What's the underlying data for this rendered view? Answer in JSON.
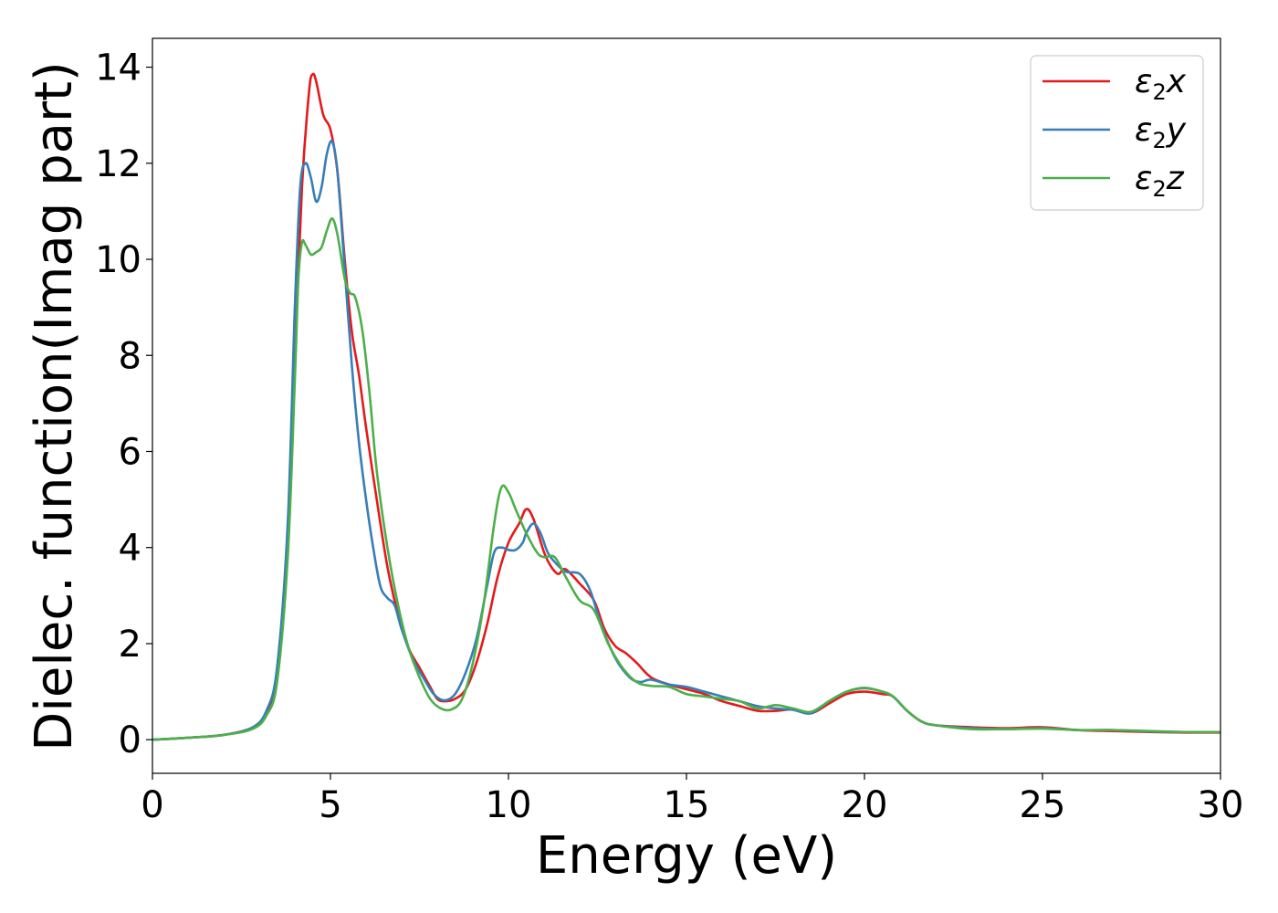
{
  "chart_data": {
    "type": "line",
    "xlabel": "Energy (eV)",
    "ylabel": "Dielec. function(Imag part)",
    "xlim": [
      0,
      30
    ],
    "ylim": [
      -0.7,
      14.6
    ],
    "x_ticks": [
      0,
      5,
      10,
      15,
      20,
      25,
      30
    ],
    "y_ticks": [
      0,
      2,
      4,
      6,
      8,
      10,
      12,
      14
    ],
    "x_tick_labels": [
      "0",
      "5",
      "10",
      "15",
      "20",
      "25",
      "30"
    ],
    "y_tick_labels": [
      "0",
      "2",
      "4",
      "6",
      "8",
      "10",
      "12",
      "14"
    ],
    "grid": false,
    "legend_position": "top-right",
    "series": [
      {
        "name": "ε2x",
        "label_base": "ε",
        "label_sub": "2",
        "label_tail": "x",
        "color": "#e41a1c",
        "points": [
          [
            0,
            0
          ],
          [
            1,
            0.04
          ],
          [
            2,
            0.1
          ],
          [
            2.8,
            0.25
          ],
          [
            3.2,
            0.55
          ],
          [
            3.5,
            1.3
          ],
          [
            3.8,
            4.0
          ],
          [
            4.0,
            8.0
          ],
          [
            4.2,
            11.5
          ],
          [
            4.4,
            13.5
          ],
          [
            4.5,
            13.85
          ],
          [
            4.6,
            13.7
          ],
          [
            4.8,
            13.0
          ],
          [
            5.0,
            12.7
          ],
          [
            5.2,
            11.8
          ],
          [
            5.4,
            10.0
          ],
          [
            5.6,
            8.5
          ],
          [
            5.8,
            7.6
          ],
          [
            6.0,
            6.5
          ],
          [
            6.3,
            5.0
          ],
          [
            6.6,
            3.6
          ],
          [
            6.9,
            2.6
          ],
          [
            7.2,
            1.9
          ],
          [
            7.5,
            1.5
          ],
          [
            7.8,
            1.1
          ],
          [
            8.0,
            0.85
          ],
          [
            8.2,
            0.8
          ],
          [
            8.5,
            0.85
          ],
          [
            8.8,
            1.05
          ],
          [
            9.1,
            1.6
          ],
          [
            9.4,
            2.4
          ],
          [
            9.7,
            3.4
          ],
          [
            10.0,
            4.1
          ],
          [
            10.3,
            4.5
          ],
          [
            10.5,
            4.8
          ],
          [
            10.7,
            4.6
          ],
          [
            11.0,
            3.9
          ],
          [
            11.2,
            3.6
          ],
          [
            11.4,
            3.45
          ],
          [
            11.6,
            3.55
          ],
          [
            12.0,
            3.25
          ],
          [
            12.4,
            2.9
          ],
          [
            12.7,
            2.3
          ],
          [
            13.0,
            1.95
          ],
          [
            13.3,
            1.8
          ],
          [
            13.6,
            1.6
          ],
          [
            14.0,
            1.3
          ],
          [
            14.5,
            1.15
          ],
          [
            15.0,
            1.05
          ],
          [
            15.5,
            0.95
          ],
          [
            16.0,
            0.8
          ],
          [
            16.5,
            0.7
          ],
          [
            17.0,
            0.6
          ],
          [
            17.5,
            0.6
          ],
          [
            18.0,
            0.63
          ],
          [
            18.5,
            0.55
          ],
          [
            19.0,
            0.75
          ],
          [
            19.5,
            0.95
          ],
          [
            20.0,
            1.0
          ],
          [
            20.5,
            0.95
          ],
          [
            20.8,
            0.9
          ],
          [
            21.2,
            0.6
          ],
          [
            21.6,
            0.38
          ],
          [
            22.0,
            0.3
          ],
          [
            23.0,
            0.26
          ],
          [
            24.0,
            0.24
          ],
          [
            25.0,
            0.26
          ],
          [
            26.0,
            0.2
          ],
          [
            27.0,
            0.18
          ],
          [
            28.0,
            0.16
          ],
          [
            29.0,
            0.15
          ],
          [
            30.0,
            0.15
          ]
        ]
      },
      {
        "name": "ε2y",
        "label_base": "ε",
        "label_sub": "2",
        "label_tail": "y",
        "color": "#377eb8",
        "points": [
          [
            0,
            0
          ],
          [
            1,
            0.04
          ],
          [
            2,
            0.1
          ],
          [
            2.8,
            0.25
          ],
          [
            3.2,
            0.6
          ],
          [
            3.5,
            1.5
          ],
          [
            3.8,
            4.5
          ],
          [
            4.0,
            9.0
          ],
          [
            4.15,
            11.5
          ],
          [
            4.3,
            12.0
          ],
          [
            4.45,
            11.7
          ],
          [
            4.6,
            11.2
          ],
          [
            4.75,
            11.5
          ],
          [
            4.9,
            12.2
          ],
          [
            5.05,
            12.45
          ],
          [
            5.2,
            11.8
          ],
          [
            5.4,
            9.8
          ],
          [
            5.6,
            7.8
          ],
          [
            5.8,
            6.2
          ],
          [
            6.0,
            5.0
          ],
          [
            6.2,
            4.0
          ],
          [
            6.4,
            3.2
          ],
          [
            6.6,
            2.95
          ],
          [
            6.8,
            2.8
          ],
          [
            7.0,
            2.3
          ],
          [
            7.3,
            1.7
          ],
          [
            7.6,
            1.3
          ],
          [
            7.9,
            0.95
          ],
          [
            8.2,
            0.82
          ],
          [
            8.5,
            0.95
          ],
          [
            8.8,
            1.4
          ],
          [
            9.1,
            2.1
          ],
          [
            9.4,
            3.2
          ],
          [
            9.6,
            3.9
          ],
          [
            9.8,
            4.0
          ],
          [
            10.0,
            3.95
          ],
          [
            10.2,
            3.95
          ],
          [
            10.4,
            4.1
          ],
          [
            10.5,
            4.3
          ],
          [
            10.7,
            4.5
          ],
          [
            10.9,
            4.3
          ],
          [
            11.1,
            3.9
          ],
          [
            11.3,
            3.7
          ],
          [
            11.6,
            3.5
          ],
          [
            12.0,
            3.45
          ],
          [
            12.3,
            3.1
          ],
          [
            12.6,
            2.4
          ],
          [
            13.0,
            1.7
          ],
          [
            13.4,
            1.3
          ],
          [
            13.7,
            1.2
          ],
          [
            14.0,
            1.25
          ],
          [
            14.5,
            1.15
          ],
          [
            15.0,
            1.1
          ],
          [
            15.5,
            1.0
          ],
          [
            16.0,
            0.9
          ],
          [
            16.5,
            0.8
          ],
          [
            17.0,
            0.7
          ],
          [
            17.5,
            0.65
          ],
          [
            18.0,
            0.62
          ],
          [
            18.5,
            0.55
          ],
          [
            19.0,
            0.8
          ],
          [
            19.5,
            1.0
          ],
          [
            20.0,
            1.07
          ],
          [
            20.5,
            1.0
          ],
          [
            20.8,
            0.9
          ],
          [
            21.2,
            0.6
          ],
          [
            21.6,
            0.38
          ],
          [
            22.0,
            0.3
          ],
          [
            23.0,
            0.24
          ],
          [
            24.0,
            0.22
          ],
          [
            25.0,
            0.24
          ],
          [
            26.0,
            0.2
          ],
          [
            27.0,
            0.2
          ],
          [
            28.0,
            0.17
          ],
          [
            29.0,
            0.16
          ],
          [
            30.0,
            0.16
          ]
        ]
      },
      {
        "name": "ε2z",
        "label_base": "ε",
        "label_sub": "2",
        "label_tail": "z",
        "color": "#4daf4a",
        "points": [
          [
            0,
            0
          ],
          [
            1,
            0.04
          ],
          [
            2,
            0.1
          ],
          [
            2.8,
            0.22
          ],
          [
            3.2,
            0.5
          ],
          [
            3.5,
            1.2
          ],
          [
            3.8,
            3.8
          ],
          [
            4.0,
            7.5
          ],
          [
            4.1,
            9.6
          ],
          [
            4.2,
            10.35
          ],
          [
            4.3,
            10.3
          ],
          [
            4.45,
            10.1
          ],
          [
            4.6,
            10.15
          ],
          [
            4.75,
            10.25
          ],
          [
            4.9,
            10.6
          ],
          [
            5.05,
            10.85
          ],
          [
            5.2,
            10.5
          ],
          [
            5.4,
            9.6
          ],
          [
            5.55,
            9.3
          ],
          [
            5.7,
            9.2
          ],
          [
            5.9,
            8.5
          ],
          [
            6.1,
            7.2
          ],
          [
            6.3,
            5.6
          ],
          [
            6.6,
            4.0
          ],
          [
            6.9,
            2.8
          ],
          [
            7.2,
            1.9
          ],
          [
            7.5,
            1.3
          ],
          [
            7.8,
            0.85
          ],
          [
            8.1,
            0.65
          ],
          [
            8.4,
            0.63
          ],
          [
            8.7,
            0.85
          ],
          [
            9.0,
            1.6
          ],
          [
            9.3,
            2.8
          ],
          [
            9.6,
            4.5
          ],
          [
            9.8,
            5.25
          ],
          [
            10.0,
            5.15
          ],
          [
            10.2,
            4.8
          ],
          [
            10.5,
            4.3
          ],
          [
            10.8,
            3.9
          ],
          [
            11.0,
            3.8
          ],
          [
            11.3,
            3.8
          ],
          [
            11.6,
            3.4
          ],
          [
            12.0,
            2.9
          ],
          [
            12.4,
            2.7
          ],
          [
            12.8,
            2.0
          ],
          [
            13.2,
            1.5
          ],
          [
            13.6,
            1.2
          ],
          [
            14.0,
            1.12
          ],
          [
            14.5,
            1.1
          ],
          [
            15.0,
            0.95
          ],
          [
            15.5,
            0.9
          ],
          [
            16.0,
            0.85
          ],
          [
            16.5,
            0.8
          ],
          [
            17.0,
            0.65
          ],
          [
            17.5,
            0.72
          ],
          [
            18.0,
            0.65
          ],
          [
            18.5,
            0.58
          ],
          [
            19.0,
            0.8
          ],
          [
            19.5,
            1.0
          ],
          [
            20.0,
            1.08
          ],
          [
            20.5,
            1.0
          ],
          [
            20.8,
            0.9
          ],
          [
            21.2,
            0.6
          ],
          [
            21.6,
            0.38
          ],
          [
            22.0,
            0.3
          ],
          [
            23.0,
            0.22
          ],
          [
            24.0,
            0.22
          ],
          [
            25.0,
            0.23
          ],
          [
            26.0,
            0.2
          ],
          [
            27.0,
            0.2
          ],
          [
            28.0,
            0.18
          ],
          [
            29.0,
            0.16
          ],
          [
            30.0,
            0.16
          ]
        ]
      }
    ]
  }
}
